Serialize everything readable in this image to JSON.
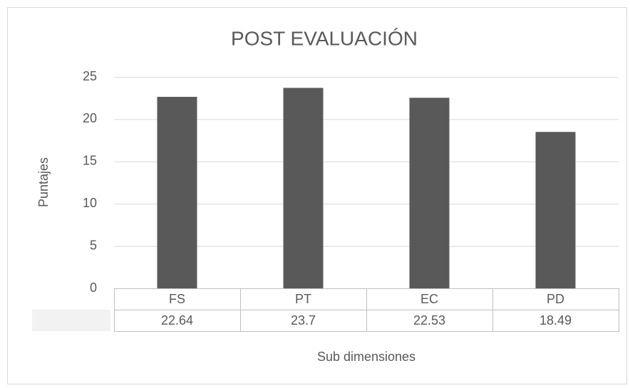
{
  "chart_data": {
    "type": "bar",
    "title": "POST EVALUACIÓN",
    "x_label": "Sub dimensiones",
    "y_label": "Puntajes",
    "categories": [
      "FS",
      "PT",
      "EC",
      "PD"
    ],
    "values": [
      22.64,
      23.7,
      22.53,
      18.49
    ],
    "color": "#595959",
    "ylim": [
      0,
      25
    ],
    "yticks": [
      0,
      5,
      10,
      15,
      20,
      25
    ],
    "grid": true
  }
}
